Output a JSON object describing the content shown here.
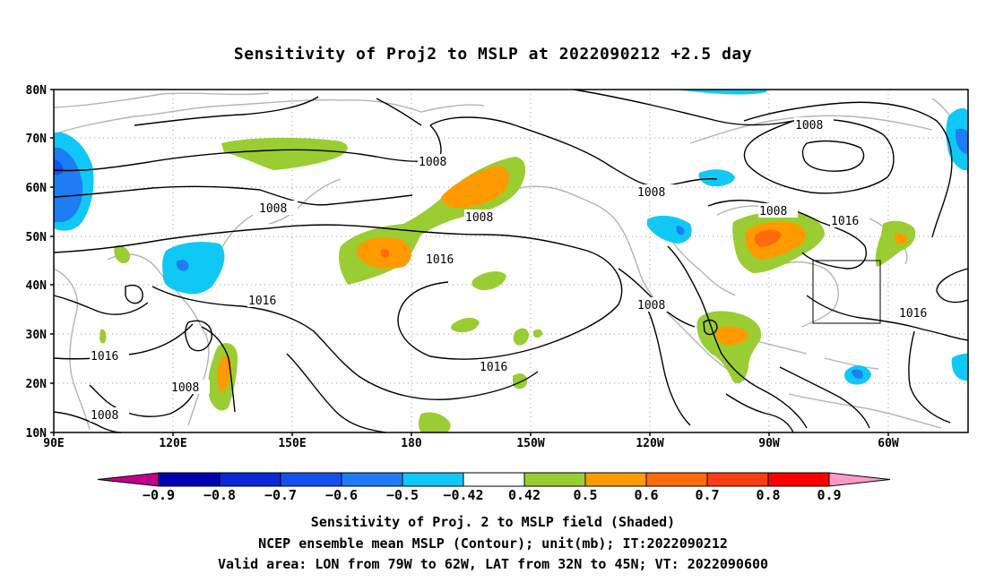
{
  "title": "Sensitivity of Proj2 to MSLP at 2022090212 +2.5 day",
  "lat_labels": [
    "80N",
    "70N",
    "60N",
    "50N",
    "40N",
    "30N",
    "20N",
    "10N"
  ],
  "lon_labels": [
    "90E",
    "120E",
    "150E",
    "180",
    "150W",
    "120W",
    "90W",
    "60W"
  ],
  "contour_labels": [
    "1008",
    "1008",
    "1008",
    "1008",
    "1008",
    "1008",
    "1008",
    "1008",
    "1016",
    "1016",
    "1016",
    "1016",
    "1016",
    "1016"
  ],
  "colorbar": {
    "labels": [
      "-0.9",
      "-0.8",
      "-0.7",
      "-0.6",
      "-0.5",
      "-0.42",
      "0.42",
      "0.5",
      "0.6",
      "0.7",
      "0.8",
      "0.9"
    ],
    "colors": [
      "#0000b0",
      "#0a28d8",
      "#1450f0",
      "#1e7cf5",
      "#10c8f5",
      "#ffffff",
      "#9acd32",
      "#ff9a00",
      "#ff6a0a",
      "#ff3c14",
      "#ff0000"
    ],
    "low_end_color": "#c0008c",
    "high_end_color": "#ff9ac8"
  },
  "captions": {
    "line1": "Sensitivity of Proj. 2 to MSLP field (Shaded)",
    "line2": "NCEP ensemble mean MSLP (Contour); unit(mb); IT:2022090212",
    "line3": "Valid area: LON from 79W to 62W, LAT from 32N to 45N; VT: 2022090600"
  },
  "colors": {
    "contour": "#000000",
    "coastline": "#b4b4b4",
    "grid": "#888888",
    "positive_weak": "#9acd32",
    "positive_mid": "#ff9a00",
    "positive_strong": "#ff6a0a",
    "negative_weak": "#10c8f5",
    "negative_mid": "#1e7cf5",
    "negative_strong": "#1450f0"
  }
}
